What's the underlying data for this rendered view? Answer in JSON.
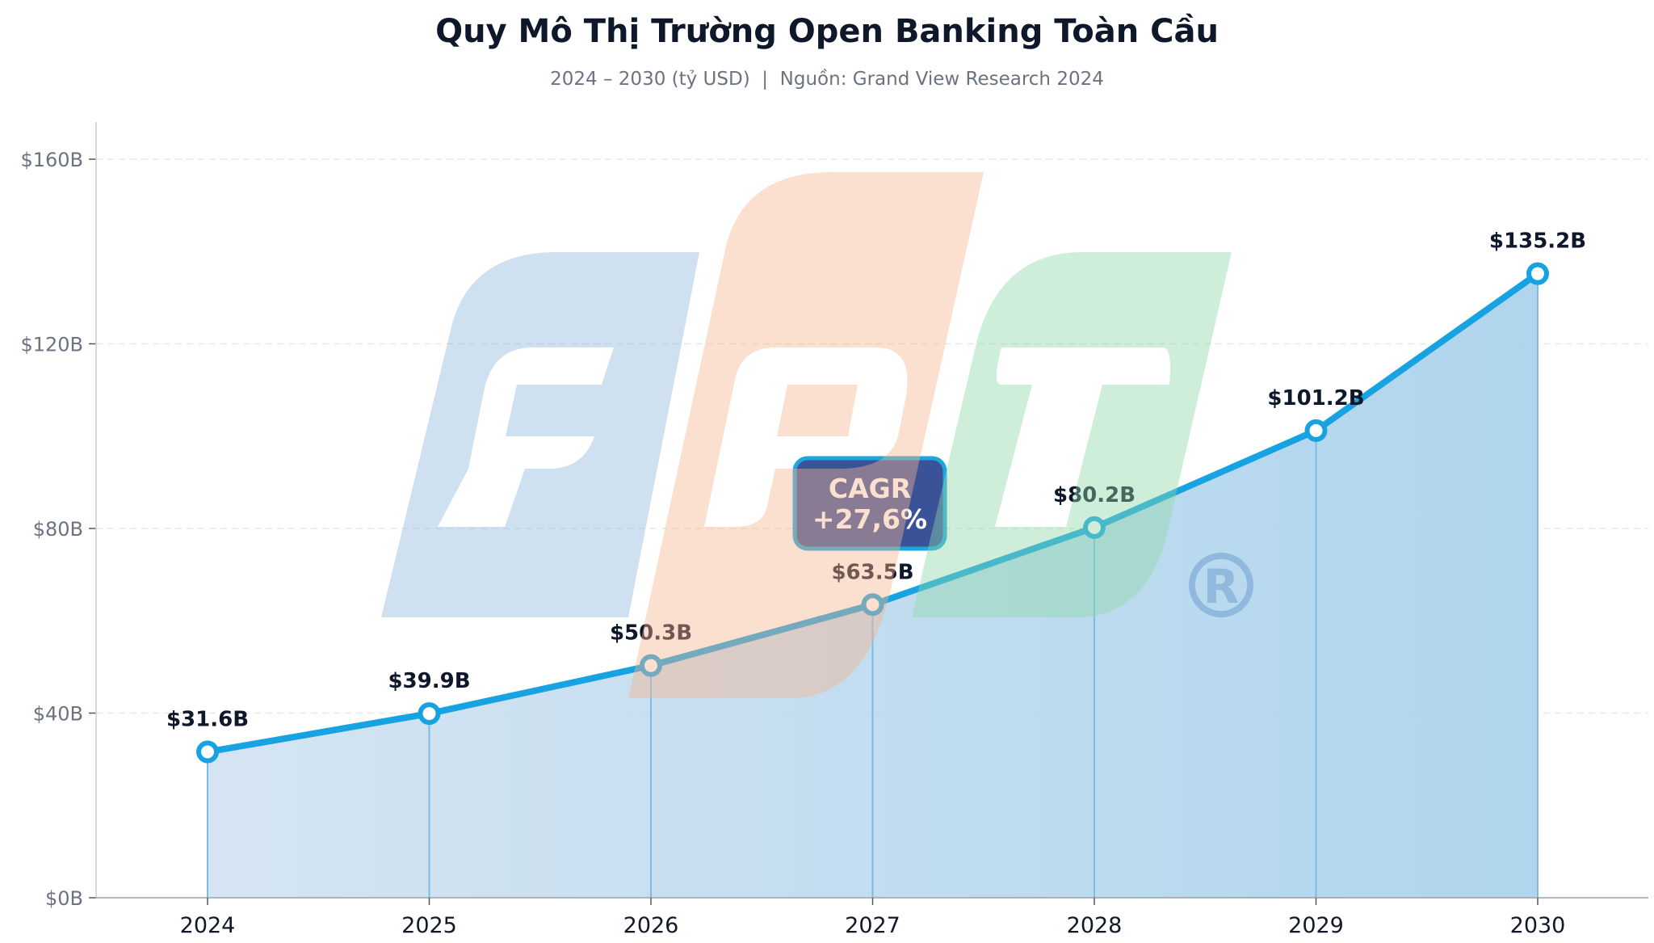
{
  "chart_data": {
    "type": "line",
    "title": "Quy Mô Thị Trường Open Banking Toàn Cầu",
    "subtitle": "2024 – 2030 (tỷ USD)  |  Nguồn: Grand View Research 2024",
    "categories": [
      "2024",
      "2025",
      "2026",
      "2027",
      "2028",
      "2029",
      "2030"
    ],
    "values": [
      31.6,
      39.9,
      50.3,
      63.5,
      80.2,
      101.2,
      135.2
    ],
    "data_labels": [
      "$31.6B",
      "$39.9B",
      "$50.3B",
      "$63.5B",
      "$80.2B",
      "$101.2B",
      "$135.2B"
    ],
    "yticks": [
      0,
      40,
      80,
      120,
      160
    ],
    "ytick_labels": [
      "$0B",
      "$40B",
      "$80B",
      "$120B",
      "$160B"
    ],
    "ylim": [
      0,
      168
    ],
    "xlabel": "",
    "ylabel": "",
    "grid": "horizontal dashed",
    "area_fill": true,
    "annotation": {
      "line1": "CAGR",
      "line2": "+27,6%"
    },
    "colors": {
      "line": "#17a2e2",
      "area_left": "#d3e3f1",
      "area_right": "#abd3ec",
      "annotation_fill": "#1e3a8a",
      "annotation_border": "#1ea5dc"
    }
  },
  "watermark": {
    "text": "FPT",
    "mark": "®",
    "colors": [
      "#8fb6dc",
      "#f7b48e",
      "#8ed9a8"
    ]
  }
}
